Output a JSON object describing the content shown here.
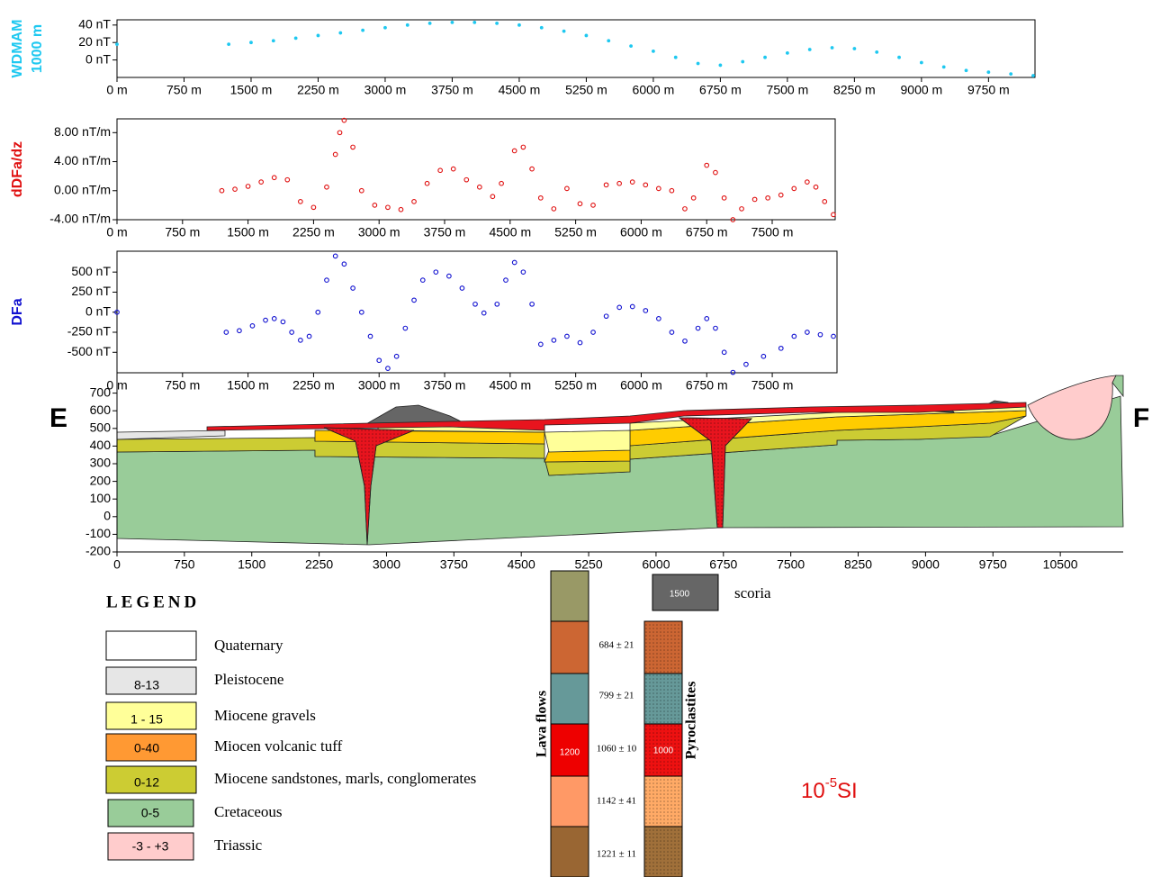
{
  "chart_data": [
    {
      "type": "scatter",
      "ylabel": [
        "WDMAM",
        "1000 m"
      ],
      "color": "#1ec8f0",
      "marker": "filled",
      "xlim": [
        0,
        10270
      ],
      "ylim": [
        -20,
        46
      ],
      "xticks": [
        {
          "value": 0,
          "label": "0 m"
        },
        {
          "value": 750,
          "label": "750 m"
        },
        {
          "value": 1500,
          "label": "1500 m"
        },
        {
          "value": 2250,
          "label": "2250 m"
        },
        {
          "value": 3000,
          "label": "3000 m"
        },
        {
          "value": 3750,
          "label": "3750 m"
        },
        {
          "value": 4500,
          "label": "4500 m"
        },
        {
          "value": 5250,
          "label": "5250 m"
        },
        {
          "value": 6000,
          "label": "6000 m"
        },
        {
          "value": 6750,
          "label": "6750 m"
        },
        {
          "value": 7500,
          "label": "7500 m"
        },
        {
          "value": 8250,
          "label": "8250 m"
        },
        {
          "value": 9000,
          "label": "9000 m"
        },
        {
          "value": 9750,
          "label": "9750 m"
        }
      ],
      "yticks": [
        {
          "value": 40,
          "label": "40 nT"
        },
        {
          "value": 20,
          "label": "20 nT"
        },
        {
          "value": 0,
          "label": "0 nT"
        }
      ],
      "x": [
        0,
        1250,
        1500,
        1750,
        2000,
        2250,
        2500,
        2750,
        3000,
        3250,
        3500,
        3750,
        4000,
        4250,
        4500,
        4750,
        5000,
        5250,
        5500,
        5750,
        6000,
        6250,
        6500,
        6750,
        7000,
        7250,
        7500,
        7750,
        8000,
        8250,
        8500,
        8750,
        9000,
        9250,
        9500,
        9750,
        10000,
        10250
      ],
      "values": [
        18,
        18,
        20,
        22,
        25,
        28,
        31,
        34,
        37,
        40,
        42,
        43,
        43,
        42,
        40,
        37,
        33,
        28,
        22,
        16,
        10,
        3,
        -4,
        -6,
        -2,
        3,
        8,
        12,
        14,
        13,
        9,
        3,
        -3,
        -8,
        -12,
        -14,
        -16,
        -18
      ]
    },
    {
      "type": "scatter",
      "ylabel": "dDFa/dz",
      "color": "#e01010",
      "marker": "open",
      "xlim": [
        0,
        8221
      ],
      "ylim": [
        -4,
        9.9
      ],
      "xticks": [
        {
          "value": 0,
          "label": "0 m"
        },
        {
          "value": 750,
          "label": "750 m"
        },
        {
          "value": 1500,
          "label": "1500 m"
        },
        {
          "value": 2250,
          "label": "2250 m"
        },
        {
          "value": 3000,
          "label": "3000 m"
        },
        {
          "value": 3750,
          "label": "3750 m"
        },
        {
          "value": 4500,
          "label": "4500 m"
        },
        {
          "value": 5250,
          "label": "5250 m"
        },
        {
          "value": 6000,
          "label": "6000 m"
        },
        {
          "value": 6750,
          "label": "6750 m"
        },
        {
          "value": 7500,
          "label": "7500 m"
        }
      ],
      "yticks": [
        {
          "value": 8,
          "label": "8.00 nT/m"
        },
        {
          "value": 4,
          "label": "4.00 nT/m"
        },
        {
          "value": 0,
          "label": "0.00 nT/m"
        },
        {
          "value": -4,
          "label": "-4.00 nT/m"
        }
      ],
      "x": [
        1200,
        1350,
        1500,
        1650,
        1800,
        1950,
        2100,
        2250,
        2400,
        2500,
        2550,
        2600,
        2700,
        2800,
        2950,
        3100,
        3250,
        3400,
        3550,
        3700,
        3850,
        4000,
        4150,
        4300,
        4400,
        4550,
        4650,
        4750,
        4850,
        5000,
        5150,
        5300,
        5450,
        5600,
        5750,
        5900,
        6050,
        6200,
        6350,
        6500,
        6600,
        6750,
        6850,
        6950,
        7050,
        7150,
        7300,
        7450,
        7600,
        7750,
        7900,
        8000,
        8100,
        8200
      ],
      "values": [
        0,
        0.2,
        0.6,
        1.2,
        1.8,
        1.5,
        -1.5,
        -2.3,
        0.5,
        5,
        8,
        9.7,
        6,
        0,
        -2,
        -2.3,
        -2.6,
        -1.5,
        1,
        2.8,
        3,
        1.5,
        0.5,
        -0.8,
        1,
        5.5,
        6,
        3,
        -1,
        -2.5,
        0.3,
        -1.8,
        -2,
        0.8,
        1,
        1.2,
        0.8,
        0.3,
        0,
        -2.5,
        -1,
        3.5,
        2.5,
        -1,
        -4,
        -2.5,
        -1.2,
        -1,
        -0.6,
        0.3,
        1.2,
        0.5,
        -1.5,
        -3.3
      ]
    },
    {
      "type": "scatter",
      "ylabel": "DFa",
      "color": "#1010d0",
      "marker": "open",
      "xlim": [
        0,
        8241
      ],
      "ylim": [
        -755,
        760
      ],
      "xticks": [
        {
          "value": 0,
          "label": "0 m"
        },
        {
          "value": 750,
          "label": "750 m"
        },
        {
          "value": 1500,
          "label": "1500 m"
        },
        {
          "value": 2250,
          "label": "2250 m"
        },
        {
          "value": 3000,
          "label": "3000 m"
        },
        {
          "value": 3750,
          "label": "3750 m"
        },
        {
          "value": 4500,
          "label": "4500 m"
        },
        {
          "value": 5250,
          "label": "5250 m"
        },
        {
          "value": 6000,
          "label": "6000 m"
        },
        {
          "value": 6750,
          "label": "6750 m"
        },
        {
          "value": 7500,
          "label": "7500 m"
        }
      ],
      "yticks": [
        {
          "value": 500,
          "label": "500 nT"
        },
        {
          "value": 250,
          "label": "250 nT"
        },
        {
          "value": 0,
          "label": "0 nT"
        },
        {
          "value": -250,
          "label": "-250 nT"
        },
        {
          "value": -500,
          "label": "-500 nT"
        }
      ],
      "x": [
        0,
        1250,
        1400,
        1550,
        1700,
        1800,
        1900,
        2000,
        2100,
        2200,
        2300,
        2400,
        2500,
        2600,
        2700,
        2800,
        2900,
        3000,
        3100,
        3200,
        3300,
        3400,
        3500,
        3650,
        3800,
        3950,
        4100,
        4200,
        4350,
        4450,
        4550,
        4650,
        4750,
        4850,
        5000,
        5150,
        5300,
        5450,
        5600,
        5750,
        5900,
        6050,
        6200,
        6350,
        6500,
        6650,
        6750,
        6850,
        6950,
        7050,
        7200,
        7400,
        7600,
        7750,
        7900,
        8050,
        8200
      ],
      "values": [
        0,
        -250,
        -230,
        -170,
        -100,
        -80,
        -120,
        -250,
        -350,
        -300,
        0,
        400,
        700,
        600,
        300,
        0,
        -300,
        -600,
        -700,
        -550,
        -200,
        150,
        400,
        500,
        450,
        300,
        100,
        -10,
        100,
        400,
        620,
        500,
        100,
        -400,
        -350,
        -300,
        -380,
        -250,
        -50,
        60,
        70,
        20,
        -80,
        -250,
        -360,
        -200,
        -80,
        -200,
        -500,
        -750,
        -650,
        -550,
        -450,
        -300,
        -250,
        -280,
        -300
      ]
    },
    {
      "type": "section",
      "left_label": "E",
      "right_label": "F",
      "xlim": [
        0,
        11200
      ],
      "ylim": [
        -200,
        800
      ],
      "xticks": [
        0,
        750,
        1500,
        2250,
        3000,
        3750,
        4500,
        5250,
        6000,
        6750,
        7500,
        8250,
        9000,
        9750,
        10500
      ],
      "yticks": [
        700,
        600,
        500,
        400,
        300,
        200,
        100,
        0,
        -100,
        -200
      ]
    }
  ],
  "legend": {
    "title": "LEGEND",
    "items": [
      {
        "label": "Quaternary"
      },
      {
        "label": "Pleistocene",
        "value": "8-13"
      },
      {
        "label": "Miocene gravels",
        "value": "1 - 15"
      },
      {
        "label": "Miocen volcanic tuff",
        "value": "0-40"
      },
      {
        "label": "Miocene sandstones, marls, conglomerates",
        "value": "0-12"
      },
      {
        "label": "Cretaceous",
        "value": "0-5"
      },
      {
        "label": "Triassic",
        "value": "-3 - +3"
      }
    ]
  },
  "scoria": {
    "label": "scoria",
    "value": "1500"
  },
  "columns": {
    "lava_flows": {
      "title": "Lava flows",
      "inner": "1200",
      "ages": [
        "684 ± 21",
        "799 ± 21",
        "1060 ± 10",
        "1142 ± 41",
        "1221 ± 11"
      ]
    },
    "pyroclastites": {
      "title": "Pyroclastites",
      "inner": "1000"
    }
  },
  "susceptibility_unit": {
    "base": "10",
    "exponent": "-5",
    "unit": "SI"
  }
}
